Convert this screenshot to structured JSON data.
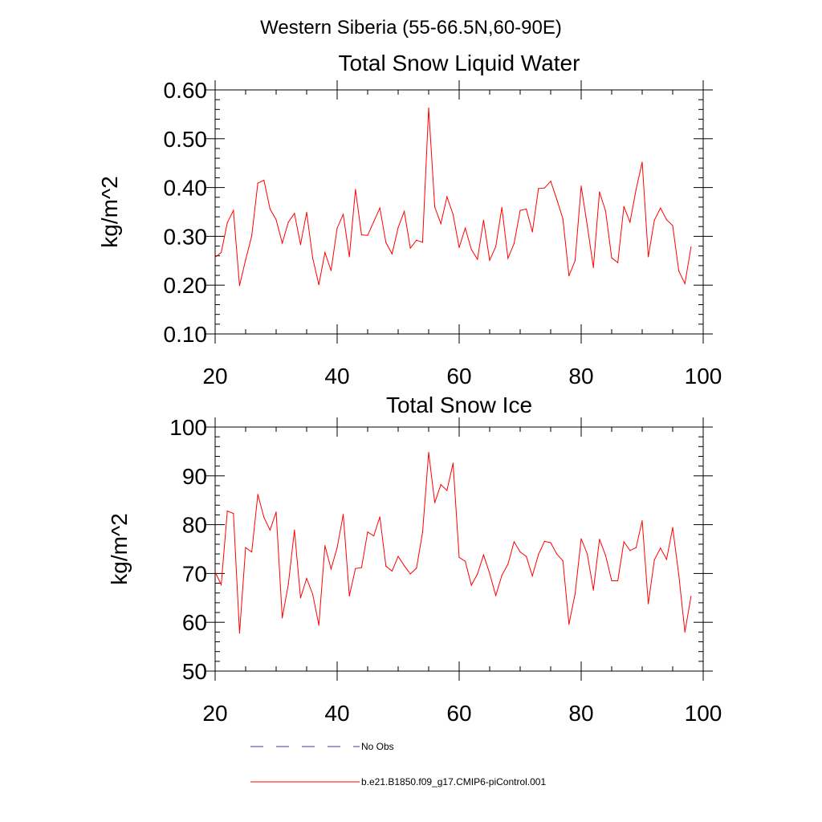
{
  "figure": {
    "suptitle": "Western Siberia (55-66.5N,60-90E)"
  },
  "chart_data": [
    {
      "type": "line",
      "title": "Total Snow Liquid Water",
      "xlabel": "",
      "ylabel": "kg/m^2",
      "xlim": [
        20,
        100
      ],
      "ylim": [
        0.1,
        0.6
      ],
      "xticks": [
        "20",
        "40",
        "60",
        "80",
        "100"
      ],
      "yticks": [
        "0.10",
        "0.20",
        "0.30",
        "0.40",
        "0.50",
        "0.60"
      ],
      "series": [
        {
          "name": "b.e21.B1850.f09_g17.CMIP6-piControl.001",
          "color": "#ff0000",
          "x": [
            20,
            21,
            22,
            23,
            24,
            25,
            26,
            27,
            28,
            29,
            30,
            31,
            32,
            33,
            34,
            35,
            36,
            37,
            38,
            39,
            40,
            41,
            42,
            43,
            44,
            45,
            46,
            47,
            48,
            49,
            50,
            51,
            52,
            53,
            54,
            55,
            56,
            57,
            58,
            59,
            60,
            61,
            62,
            63,
            64,
            65,
            66,
            67,
            68,
            69,
            70,
            71,
            72,
            73,
            74,
            75,
            76,
            77,
            78,
            79,
            80,
            81,
            82,
            83,
            84,
            85,
            86,
            87,
            88,
            89,
            90,
            91,
            92,
            93,
            94,
            95,
            96,
            97,
            98
          ],
          "values": [
            0.257,
            0.267,
            0.328,
            0.353,
            0.199,
            0.252,
            0.301,
            0.409,
            0.415,
            0.356,
            0.334,
            0.286,
            0.329,
            0.347,
            0.283,
            0.349,
            0.255,
            0.201,
            0.267,
            0.23,
            0.317,
            0.345,
            0.258,
            0.396,
            0.303,
            0.302,
            0.33,
            0.358,
            0.287,
            0.264,
            0.318,
            0.351,
            0.276,
            0.292,
            0.288,
            0.563,
            0.36,
            0.326,
            0.381,
            0.345,
            0.277,
            0.317,
            0.273,
            0.253,
            0.333,
            0.251,
            0.279,
            0.359,
            0.255,
            0.285,
            0.353,
            0.356,
            0.309,
            0.398,
            0.399,
            0.413,
            0.376,
            0.336,
            0.219,
            0.25,
            0.403,
            0.322,
            0.236,
            0.391,
            0.352,
            0.256,
            0.246,
            0.361,
            0.329,
            0.396,
            0.452,
            0.258,
            0.333,
            0.358,
            0.334,
            0.322,
            0.229,
            0.203,
            0.278
          ]
        }
      ]
    },
    {
      "type": "line",
      "title": "Total Snow Ice",
      "xlabel": "",
      "ylabel": "kg/m^2",
      "xlim": [
        20,
        100
      ],
      "ylim": [
        50,
        100
      ],
      "xticks": [
        "20",
        "40",
        "60",
        "80",
        "100"
      ],
      "yticks": [
        "50",
        "60",
        "70",
        "80",
        "90",
        "100"
      ],
      "series": [
        {
          "name": "b.e21.B1850.f09_g17.CMIP6-piControl.001",
          "color": "#ff0000",
          "x": [
            20,
            21,
            22,
            23,
            24,
            25,
            26,
            27,
            28,
            29,
            30,
            31,
            32,
            33,
            34,
            35,
            36,
            37,
            38,
            39,
            40,
            41,
            42,
            43,
            44,
            45,
            46,
            47,
            48,
            49,
            50,
            51,
            52,
            53,
            54,
            55,
            56,
            57,
            58,
            59,
            60,
            61,
            62,
            63,
            64,
            65,
            66,
            67,
            68,
            69,
            70,
            71,
            72,
            73,
            74,
            75,
            76,
            77,
            78,
            79,
            80,
            81,
            82,
            83,
            84,
            85,
            86,
            87,
            88,
            89,
            90,
            91,
            92,
            93,
            94,
            95,
            96,
            97,
            98
          ],
          "values": [
            70.3,
            67.7,
            82.8,
            82.3,
            57.8,
            75.3,
            74.4,
            86.2,
            81.5,
            78.9,
            82.6,
            60.9,
            67.8,
            78.9,
            65.0,
            69.0,
            65.7,
            59.4,
            75.7,
            70.9,
            75.3,
            82.1,
            65.4,
            71.0,
            71.2,
            78.5,
            77.7,
            81.6,
            71.5,
            70.5,
            73.5,
            71.6,
            69.9,
            71.1,
            78.4,
            94.8,
            84.5,
            88.2,
            87.0,
            92.6,
            73.3,
            72.5,
            67.6,
            69.9,
            73.8,
            70.0,
            65.5,
            69.6,
            71.9,
            76.5,
            74.4,
            73.5,
            69.5,
            73.9,
            76.6,
            76.3,
            74.0,
            72.6,
            59.6,
            65.8,
            77.1,
            74.0,
            66.6,
            77.0,
            73.7,
            68.5,
            68.5,
            76.5,
            74.7,
            75.3,
            80.8,
            63.8,
            72.8,
            75.2,
            72.9,
            79.4,
            69.7,
            58.0,
            65.3
          ]
        }
      ]
    }
  ],
  "legend": {
    "items": [
      {
        "label": "No Obs",
        "color": "#3b3b8c",
        "style": "dashed"
      },
      {
        "label": "b.e21.B1850.f09_g17.CMIP6-piControl.001",
        "color": "#ff0000",
        "style": "solid"
      }
    ]
  }
}
